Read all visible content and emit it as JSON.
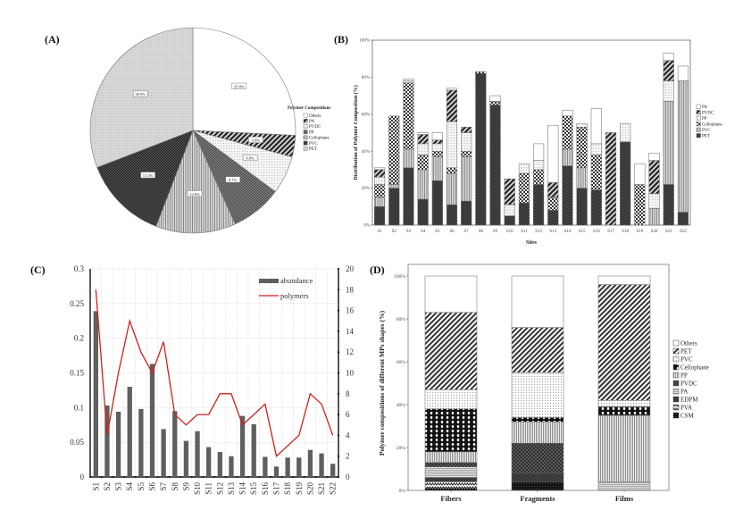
{
  "panels": {
    "a_label": "(A)",
    "b_label": "(B)",
    "c_label": "(C)",
    "d_label": "(D)"
  },
  "patterns": {
    "Others": "white",
    "PA": "hatch-dark",
    "PVDC": "dots-light",
    "PP": "check-mid",
    "Cellophane": "vlines",
    "PVC": "check-dark",
    "PET": "dots-grey"
  },
  "chart_data": [
    {
      "id": "A",
      "type": "pie",
      "title": "",
      "legend_title": "Polymer Compositions",
      "legend": [
        "Others",
        "PA",
        "PVDC",
        "PP",
        "Cellophane",
        "PVC",
        "PET"
      ],
      "slices": [
        {
          "name": "Others",
          "value": 25.8,
          "label": "25.8%"
        },
        {
          "name": "PA",
          "value": 3.4,
          "label": "3.4%"
        },
        {
          "name": "PVDC",
          "value": 6.0,
          "label": "6.0%"
        },
        {
          "name": "PP",
          "value": 8.1,
          "label": "8.1%"
        },
        {
          "name": "Cellophane",
          "value": 12.6,
          "label": "12.6%"
        },
        {
          "name": "PVC",
          "value": 13.3,
          "label": "13.3%"
        },
        {
          "name": "PET",
          "value": 30.9,
          "label": "30.9%"
        }
      ]
    },
    {
      "id": "B",
      "type": "bar",
      "stacked": true,
      "xlabel": "Sites",
      "ylabel": "Distribution of Polymer Composition (%)",
      "ylim": [
        0,
        100
      ],
      "yticks": [
        "0%",
        "20%",
        "40%",
        "60%",
        "80%",
        "100%"
      ],
      "legend": [
        "PA",
        "PVDC",
        "PP",
        "Cellophane",
        "PVC",
        "PET"
      ],
      "legend_placement": "right",
      "categories": [
        "S1",
        "S2",
        "S3",
        "S4",
        "S5",
        "S6",
        "S7",
        "S8",
        "S9",
        "S10",
        "S11",
        "S12",
        "S13",
        "S14",
        "S15",
        "S16",
        "S17",
        "S18",
        "S19",
        "S20",
        "S21",
        "S22"
      ],
      "series": [
        {
          "name": "PET",
          "values": [
            10,
            20,
            31,
            14,
            24,
            11,
            13,
            82,
            65,
            5,
            12,
            22,
            8,
            32,
            20,
            19,
            0,
            45,
            0,
            0,
            22,
            7
          ]
        },
        {
          "name": "PVC",
          "values": [
            5,
            2,
            10,
            16,
            13,
            17,
            24,
            0,
            0,
            0,
            0,
            0,
            0,
            9,
            11,
            0,
            0,
            0,
            0,
            9,
            45,
            71
          ]
        },
        {
          "name": "Cellophane",
          "values": [
            7,
            37,
            36,
            8,
            3,
            3,
            3,
            1,
            2,
            0,
            16,
            8,
            7,
            18,
            22,
            19,
            0,
            0,
            22,
            0,
            0,
            0
          ]
        },
        {
          "name": "PP",
          "values": [
            4,
            0,
            1,
            6,
            4,
            25,
            10,
            0,
            0,
            6,
            5,
            5,
            0,
            0,
            2,
            6,
            0,
            10,
            0,
            8,
            11,
            0
          ]
        },
        {
          "name": "PVDC",
          "values": [
            4,
            0,
            0,
            5,
            2,
            17,
            3,
            0,
            0,
            14,
            0,
            0,
            8,
            0,
            0,
            0,
            50,
            0,
            0,
            18,
            11,
            0
          ]
        },
        {
          "name": "PA",
          "values": [
            1,
            0,
            1,
            1,
            4,
            1,
            0,
            0,
            3,
            0,
            0,
            9,
            31,
            3,
            0,
            19,
            0,
            0,
            11,
            4,
            4,
            8
          ]
        }
      ]
    },
    {
      "id": "C",
      "type": "bar+line",
      "categories": [
        "S1",
        "S2",
        "S3",
        "S4",
        "S5",
        "S6",
        "S7",
        "S8",
        "S9",
        "S10",
        "S11",
        "S12",
        "S13",
        "S14",
        "S15",
        "S16",
        "S17",
        "S18",
        "S19",
        "S20",
        "S21",
        "S22"
      ],
      "ylim_left": [
        0,
        0.3
      ],
      "ylim_right": [
        0,
        20
      ],
      "yticks_left": [
        "0",
        "0.05",
        "0.1",
        "0.15",
        "0.2",
        "0.25",
        "0.3"
      ],
      "yticks_right": [
        "0",
        "2",
        "4",
        "6",
        "8",
        "10",
        "12",
        "14",
        "16",
        "18",
        "20"
      ],
      "grid": true,
      "legend_placement": "top-right",
      "series": [
        {
          "name": "abundance",
          "type": "bar",
          "axis": "left",
          "color": "#5f5f5f",
          "values": [
            0.239,
            0.103,
            0.094,
            0.13,
            0.098,
            0.163,
            0.069,
            0.095,
            0.052,
            0.066,
            0.043,
            0.036,
            0.03,
            0.088,
            0.076,
            0.029,
            0.015,
            0.028,
            0.028,
            0.039,
            0.034,
            0.019
          ]
        },
        {
          "name": "polymers",
          "type": "line",
          "axis": "right",
          "color": "#d02020",
          "values": [
            18,
            4,
            10,
            15,
            12,
            10,
            13,
            6,
            5,
            6,
            6,
            8,
            8,
            5,
            6,
            7,
            2,
            3,
            4,
            8,
            7,
            4
          ]
        }
      ]
    },
    {
      "id": "D",
      "type": "bar",
      "stacked": true,
      "xlabel": "",
      "ylabel": "Polymer compositions of different MPs shapes (%)",
      "ylim": [
        0,
        100
      ],
      "yticks": [
        "0%",
        "20%",
        "40%",
        "60%",
        "80%",
        "100%"
      ],
      "legend": [
        "Others",
        "PET",
        "PVC",
        "Cellophane",
        "PP",
        "PVDC",
        "PA",
        "EDPM",
        "PVA",
        "CSM"
      ],
      "legend_placement": "right",
      "categories": [
        "Fibers",
        "Fragments",
        "Films"
      ],
      "series": [
        {
          "name": "CSM",
          "values": [
            1,
            4,
            0
          ]
        },
        {
          "name": "PVA",
          "values": [
            3,
            0,
            0
          ]
        },
        {
          "name": "EDPM",
          "values": [
            2,
            4,
            0
          ]
        },
        {
          "name": "PA",
          "values": [
            5,
            0,
            4
          ]
        },
        {
          "name": "PVDC",
          "values": [
            2,
            14,
            0
          ]
        },
        {
          "name": "PP",
          "values": [
            5,
            10,
            31
          ]
        },
        {
          "name": "Cellophane",
          "values": [
            20,
            2,
            4
          ]
        },
        {
          "name": "PVC",
          "values": [
            9,
            21,
            3
          ]
        },
        {
          "name": "PET",
          "values": [
            36,
            21,
            54
          ]
        },
        {
          "name": "Others",
          "values": [
            17,
            24,
            4
          ]
        }
      ]
    }
  ]
}
